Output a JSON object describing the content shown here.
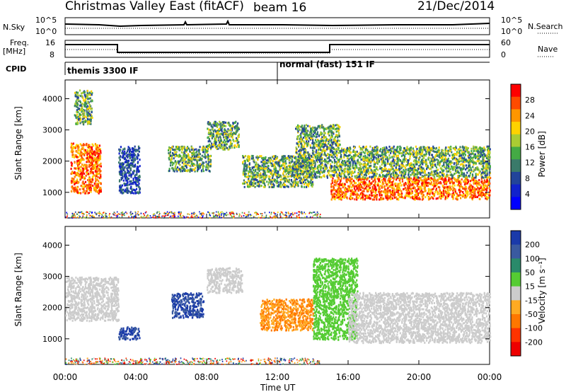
{
  "header": {
    "title": "Christmas Valley East (fitACF)",
    "beam": "beam 16",
    "date": "21/Dec/2014"
  },
  "top_panels": {
    "nsky_label": "N.Sky",
    "nsky_ticks": [
      "10^5",
      "10^0"
    ],
    "nsearch_label": "N.Search",
    "nsearch_ticks": [
      "10^5",
      "10^0"
    ],
    "freq_label_1": "Freq.",
    "freq_label_2": "[MHz]",
    "freq_ticks": [
      "16",
      "8"
    ],
    "nave_label": "Nave",
    "nave_ticks": [
      "60",
      "0"
    ],
    "cpid_label": "CPID",
    "cpid_segments": [
      {
        "text": "themis 3300 IF",
        "start_hour": 0,
        "end_hour": 12
      },
      {
        "text": "normal (fast) 151 IF",
        "start_hour": 12,
        "end_hour": 24
      }
    ]
  },
  "chart_data": [
    {
      "type": "heatmap",
      "panel": "power",
      "ylabel": "Slant Range [km]",
      "yticks": [
        1000,
        2000,
        3000,
        4000
      ],
      "ylim": [
        180,
        4600
      ],
      "xlim": [
        0,
        24
      ],
      "colorbar": {
        "label": "Power [dB]",
        "ticks": [
          "28",
          "24",
          "20",
          "16",
          "12",
          "8",
          "4"
        ],
        "colors": [
          "#ff0000",
          "#ff4b00",
          "#ff9600",
          "#ffd200",
          "#aacc33",
          "#44aa44",
          "#3a7a6a",
          "#22449a",
          "#1122cc",
          "#0000ff"
        ]
      },
      "regions": [
        {
          "x": [
            0.3,
            2.0
          ],
          "y": [
            1000,
            2600
          ],
          "level": "high"
        },
        {
          "x": [
            0.5,
            1.5
          ],
          "y": [
            3200,
            4300
          ],
          "level": "mid"
        },
        {
          "x": [
            3.0,
            4.2
          ],
          "y": [
            1000,
            2500
          ],
          "level": "low"
        },
        {
          "x": [
            5.8,
            8.2
          ],
          "y": [
            1700,
            2500
          ],
          "level": "mid"
        },
        {
          "x": [
            8.0,
            9.8
          ],
          "y": [
            2400,
            3300
          ],
          "level": "mid"
        },
        {
          "x": [
            10.0,
            14.0
          ],
          "y": [
            1200,
            2200
          ],
          "level": "mid"
        },
        {
          "x": [
            13.0,
            15.5
          ],
          "y": [
            1500,
            3200
          ],
          "level": "mid"
        },
        {
          "x": [
            15.0,
            24.0
          ],
          "y": [
            800,
            1500
          ],
          "level": "high"
        },
        {
          "x": [
            15.5,
            24.0
          ],
          "y": [
            1500,
            2500
          ],
          "level": "mid"
        }
      ]
    },
    {
      "type": "heatmap",
      "panel": "velocity",
      "ylabel": "Slant Range [km]",
      "xlabel": "Time UT",
      "xticks": [
        "00:00",
        "04:00",
        "08:00",
        "12:00",
        "16:00",
        "20:00",
        "00:00"
      ],
      "yticks": [
        1000,
        2000,
        3000,
        4000
      ],
      "ylim": [
        180,
        4600
      ],
      "xlim": [
        0,
        24
      ],
      "colorbar": {
        "label": "Velocity [m s⁻¹]",
        "ticks": [
          "200",
          "100",
          "50",
          "15",
          "-15",
          "-50",
          "-100",
          "-200"
        ],
        "colors": [
          "#1a3aaa",
          "#3a5aa0",
          "#2a8a6a",
          "#55cc33",
          "#cccccc",
          "#ffaa22",
          "#ff7700",
          "#ff3300",
          "#ee0000"
        ]
      },
      "regions": [
        {
          "x": [
            0.0,
            3.0
          ],
          "y": [
            1600,
            3000
          ],
          "level": "ground"
        },
        {
          "x": [
            3.0,
            4.2
          ],
          "y": [
            1000,
            1400
          ],
          "level": "toward"
        },
        {
          "x": [
            6.0,
            7.8
          ],
          "y": [
            1700,
            2500
          ],
          "level": "toward"
        },
        {
          "x": [
            8.0,
            10.0
          ],
          "y": [
            2500,
            3300
          ],
          "level": "ground"
        },
        {
          "x": [
            11.0,
            14.0
          ],
          "y": [
            1300,
            2300
          ],
          "level": "away"
        },
        {
          "x": [
            14.0,
            16.5
          ],
          "y": [
            1000,
            3600
          ],
          "level": "slow-toward"
        },
        {
          "x": [
            16.0,
            24.0
          ],
          "y": [
            900,
            2500
          ],
          "level": "ground"
        }
      ]
    }
  ]
}
